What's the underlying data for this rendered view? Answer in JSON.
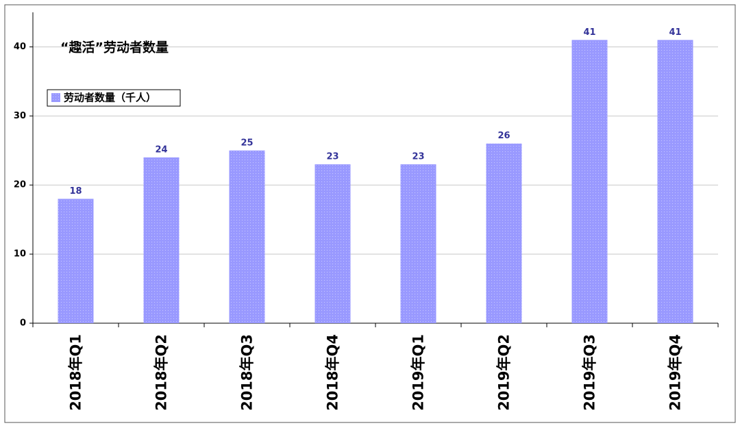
{
  "chart_data": {
    "type": "bar",
    "title": "“趣活”劳动者数量",
    "legend": "劳动者数量（千人）",
    "categories": [
      "2018年Q1",
      "2018年Q2",
      "2018年Q3",
      "2018年Q4",
      "2019年Q1",
      "2019年Q2",
      "2019年Q3",
      "2019年Q4"
    ],
    "values": [
      18,
      24,
      25,
      23,
      23,
      26,
      41,
      41
    ],
    "color": "#9999ff",
    "ylim": [
      0,
      45
    ],
    "yticks": [
      0,
      10,
      20,
      30,
      40
    ],
    "grid": true
  }
}
